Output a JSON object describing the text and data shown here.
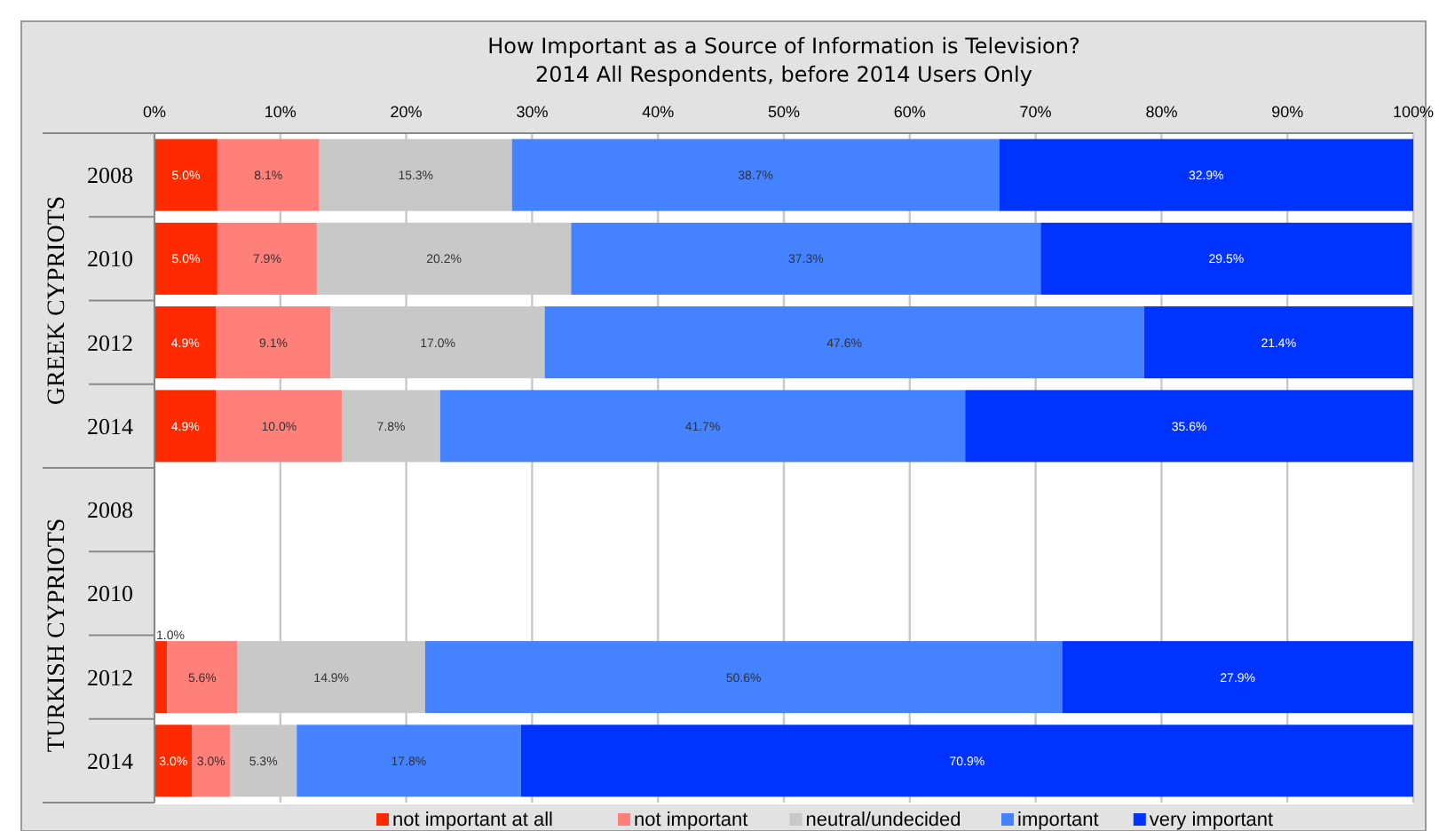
{
  "chart_data": {
    "type": "bar",
    "orientation": "horizontal",
    "stacked": true,
    "title": "How Important as a Source of Information is Television?",
    "subtitle": "2014 All Respondents, before 2014 Users Only",
    "categories": [
      "2008",
      "2010",
      "2012",
      "2014",
      "2008",
      "2010",
      "2012",
      "2014"
    ],
    "annotations": [
      "GREEK CYPRIOTS",
      "TURKISH CYPRIOTS"
    ],
    "series": [
      {
        "name": "not important at all",
        "color": "#ff2a00",
        "values": [
          5.0,
          5.0,
          4.9,
          4.9,
          null,
          null,
          1.0,
          3.0
        ]
      },
      {
        "name": "not important",
        "color": "#ff7f7a",
        "values": [
          8.1,
          7.9,
          9.1,
          10.0,
          null,
          null,
          5.6,
          3.0
        ]
      },
      {
        "name": "neutral/undecided",
        "color": "#c8c8c8",
        "values": [
          15.3,
          20.2,
          17.0,
          7.8,
          null,
          null,
          14.9,
          5.3
        ]
      },
      {
        "name": "important",
        "color": "#4482ff",
        "values": [
          38.7,
          37.3,
          47.6,
          41.7,
          null,
          null,
          50.6,
          17.8
        ]
      },
      {
        "name": "very important",
        "color": "#0033ff",
        "values": [
          32.9,
          29.5,
          21.4,
          35.6,
          null,
          null,
          27.9,
          70.9
        ]
      }
    ],
    "value_labels": [
      [
        "5.0%",
        "5.0%",
        "4.9%",
        "4.9%",
        null,
        null,
        "1.0%",
        "3.0%"
      ],
      [
        "8.1%",
        "7.9%",
        "9.1%",
        "10.0%",
        null,
        null,
        "5.6%",
        "3.0%"
      ],
      [
        "15.3%",
        "20.2%",
        "17.0%",
        "7.8%",
        null,
        null,
        "14.9%",
        "5.3%"
      ],
      [
        "38.7%",
        "37.3%",
        "47.6%",
        "41.7%",
        null,
        null,
        "50.6%",
        "17.8%"
      ],
      [
        "32.9%",
        "29.5%",
        "21.4%",
        "35.6%",
        null,
        null,
        "27.9%",
        "70.9%"
      ]
    ],
    "xlim": [
      0,
      100
    ],
    "xticks": [
      {
        "value": 0,
        "label": "0%"
      },
      {
        "value": 10,
        "label": "10%"
      },
      {
        "value": 20,
        "label": "20%"
      },
      {
        "value": 30,
        "label": "30%"
      },
      {
        "value": 40,
        "label": "40%"
      },
      {
        "value": 50,
        "label": "50%"
      },
      {
        "value": 60,
        "label": "60%"
      },
      {
        "value": 70,
        "label": "70%"
      },
      {
        "value": 80,
        "label": "80%"
      },
      {
        "value": 90,
        "label": "90%"
      },
      {
        "value": 100,
        "label": "100%"
      }
    ],
    "grid": "x",
    "legend": "bottom"
  }
}
